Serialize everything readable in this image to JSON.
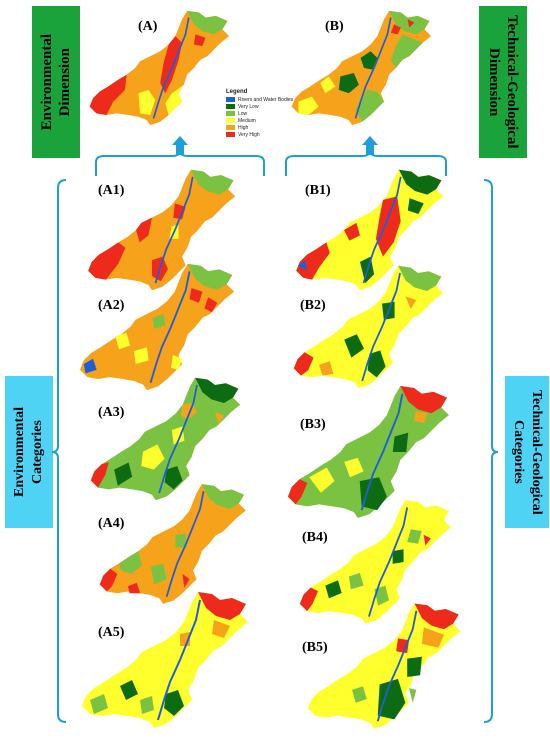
{
  "top": {
    "left_label": "(A)",
    "right_label": "(B)",
    "left_title_line1": "Environmental",
    "left_title_line2": "Dimension",
    "right_title_line1": "Technical-Geological",
    "right_title_line2": "Dimension"
  },
  "side": {
    "left_line1": "Environmental",
    "left_line2": "Categories",
    "right_line1": "Technical-Geological",
    "right_line2": "Categories"
  },
  "legend": {
    "title": "Legend",
    "items": [
      {
        "label": "Rivers and Water Bodies",
        "color": "#1f5fd6"
      },
      {
        "label": "Very Low",
        "color": "#0d6b12"
      },
      {
        "label": "Low",
        "color": "#7cc242"
      },
      {
        "label": "Medium",
        "color": "#ffff2e"
      },
      {
        "label": "High",
        "color": "#f7a21b"
      },
      {
        "label": "Very High",
        "color": "#ee2a1d"
      }
    ]
  },
  "maps": {
    "A1": "(A1)",
    "A2": "(A2)",
    "A3": "(A3)",
    "A4": "(A4)",
    "A5": "(A5)",
    "B1": "(B1)",
    "B2": "(B2)",
    "B3": "(B3)",
    "B4": "(B4)",
    "B5": "(B5)"
  },
  "colors": {
    "very_low": "#0d6b12",
    "low": "#7cc242",
    "medium": "#ffff2e",
    "high": "#f7a21b",
    "very_high": "#ee2a1d",
    "water": "#1f5fd6",
    "green_box": "#1aa33a",
    "blue_box": "#4fd3f5",
    "bracket": "#1e9fd8"
  }
}
